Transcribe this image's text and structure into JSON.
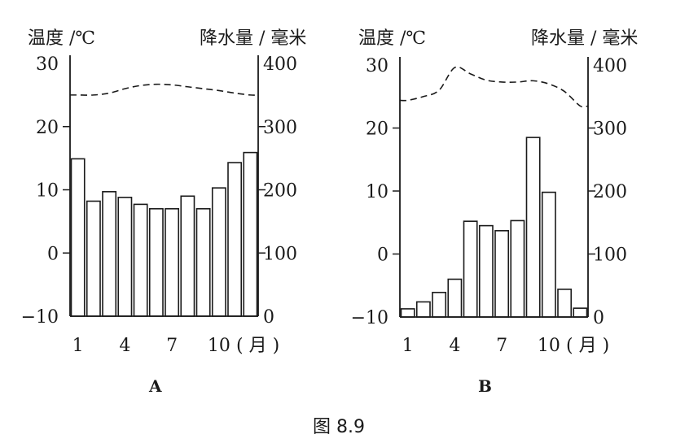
{
  "figure_caption": "图 8.9",
  "chart_data": [
    {
      "type": "bar+line",
      "title": "A",
      "left_axis_label": "温度 /℃",
      "right_axis_label": "降水量 / 毫米",
      "x_unit_label": "( 月 )",
      "x_tick_labels": [
        "1",
        "4",
        "7",
        "10"
      ],
      "months": [
        1,
        2,
        3,
        4,
        5,
        6,
        7,
        8,
        9,
        10,
        11,
        12
      ],
      "temp_ylim": [
        -10,
        30
      ],
      "temp_ticks": [
        "30",
        "20",
        "10",
        "0",
        "−10"
      ],
      "precip_ylim": [
        0,
        400
      ],
      "precip_ticks": [
        "400",
        "300",
        "200",
        "100",
        "0"
      ],
      "precipitation_mm": [
        249,
        182,
        197,
        188,
        177,
        170,
        170,
        190,
        170,
        203,
        243,
        259
      ],
      "temperature_c": [
        25,
        25,
        25.3,
        26,
        26.5,
        26.7,
        26.6,
        26.3,
        26,
        25.7,
        25.3,
        25
      ]
    },
    {
      "type": "bar+line",
      "title": "B",
      "left_axis_label": "温度 /℃",
      "right_axis_label": "降水量 / 毫米",
      "x_unit_label": "( 月 )",
      "x_tick_labels": [
        "1",
        "4",
        "7",
        "10"
      ],
      "months": [
        1,
        2,
        3,
        4,
        5,
        6,
        7,
        8,
        9,
        10,
        11,
        12
      ],
      "temp_ylim": [
        -10,
        30
      ],
      "temp_ticks": [
        "30",
        "20",
        "10",
        "0",
        "−10"
      ],
      "precip_ylim": [
        0,
        400
      ],
      "precip_ticks": [
        "400",
        "300",
        "200",
        "100",
        "0"
      ],
      "precipitation_mm": [
        13,
        24,
        39,
        60,
        152,
        145,
        137,
        153,
        285,
        198,
        44,
        14
      ],
      "temperature_c": [
        24.4,
        25,
        26,
        29.6,
        28.6,
        27.6,
        27.3,
        27.3,
        27.5,
        27,
        25.8,
        23.5
      ]
    }
  ]
}
